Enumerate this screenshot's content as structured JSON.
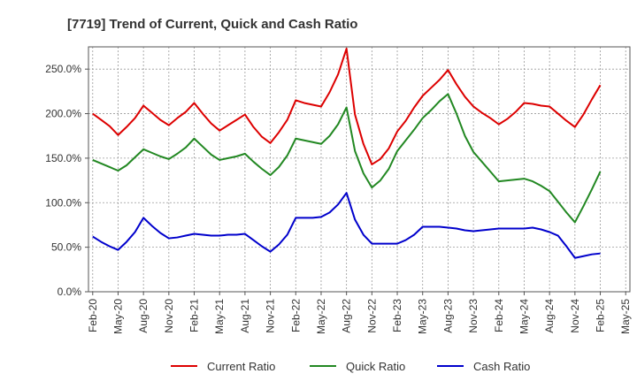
{
  "chart_data": {
    "type": "line",
    "title": "[7719]  Trend of Current, Quick and Cash Ratio",
    "xlabel": "",
    "ylabel": "",
    "ylim": [
      0,
      275
    ],
    "y_ticks": [
      0,
      50,
      100,
      150,
      200,
      250
    ],
    "y_tick_labels": [
      "0.0%",
      "50.0%",
      "100.0%",
      "150.0%",
      "200.0%",
      "250.0%"
    ],
    "x_tick_labels": [
      "Feb-20",
      "May-20",
      "Aug-20",
      "Nov-20",
      "Feb-21",
      "May-21",
      "Aug-21",
      "Nov-21",
      "Feb-22",
      "May-22",
      "Aug-22",
      "Nov-22",
      "Feb-23",
      "May-23",
      "Aug-23",
      "Nov-23",
      "Feb-24",
      "May-24",
      "Aug-24",
      "Nov-24",
      "Feb-25",
      "May-25"
    ],
    "x": [
      "Feb-20",
      "Mar-20",
      "Apr-20",
      "May-20",
      "Jun-20",
      "Jul-20",
      "Aug-20",
      "Sep-20",
      "Oct-20",
      "Nov-20",
      "Dec-20",
      "Jan-21",
      "Feb-21",
      "Mar-21",
      "Apr-21",
      "May-21",
      "Jun-21",
      "Jul-21",
      "Aug-21",
      "Sep-21",
      "Oct-21",
      "Nov-21",
      "Dec-21",
      "Jan-22",
      "Feb-22",
      "Mar-22",
      "Apr-22",
      "May-22",
      "Jun-22",
      "Jul-22",
      "Aug-22",
      "Sep-22",
      "Oct-22",
      "Nov-22",
      "Dec-22",
      "Jan-23",
      "Feb-23",
      "Mar-23",
      "Apr-23",
      "May-23",
      "Jun-23",
      "Jul-23",
      "Aug-23",
      "Sep-23",
      "Oct-23",
      "Nov-23",
      "Dec-23",
      "Jan-24",
      "Feb-24",
      "Mar-24",
      "Apr-24",
      "May-24",
      "Jun-24",
      "Jul-24",
      "Aug-24",
      "Sep-24",
      "Oct-24",
      "Nov-24",
      "Dec-24",
      "Jan-25",
      "Feb-25",
      "Mar-25",
      "Apr-25",
      "May-25"
    ],
    "series": [
      {
        "name": "Current Ratio",
        "color": "#dd0000",
        "values": [
          200,
          193,
          186,
          176,
          185,
          195,
          209,
          201,
          193,
          187,
          195,
          202,
          212,
          200,
          189,
          181,
          187,
          193,
          199,
          185,
          174,
          167,
          179,
          193,
          215,
          212,
          210,
          208,
          224,
          244,
          273,
          199,
          166,
          143,
          149,
          161,
          180,
          192,
          207,
          220,
          229,
          238,
          249,
          233,
          219,
          208,
          201,
          195,
          188,
          194,
          202,
          212,
          211,
          209,
          208,
          200,
          192,
          185,
          199,
          216,
          232,
          null,
          null,
          null
        ]
      },
      {
        "name": "Quick Ratio",
        "color": "#228822",
        "values": [
          148,
          144,
          140,
          136,
          142,
          151,
          160,
          156,
          152,
          149,
          155,
          162,
          172,
          163,
          154,
          148,
          150,
          152,
          155,
          146,
          138,
          131,
          140,
          153,
          172,
          170,
          168,
          166,
          175,
          188,
          207,
          158,
          133,
          117,
          125,
          138,
          158,
          170,
          182,
          195,
          204,
          214,
          222,
          200,
          175,
          157,
          146,
          135,
          124,
          125,
          126,
          127,
          124,
          119,
          113,
          101,
          89,
          78,
          96,
          115,
          135,
          null,
          null,
          null
        ]
      },
      {
        "name": "Cash Ratio",
        "color": "#0000cc",
        "values": [
          62,
          56,
          51,
          47,
          56,
          67,
          83,
          74,
          66,
          60,
          61,
          63,
          65,
          64,
          63,
          63,
          64,
          64,
          65,
          58,
          51,
          45,
          53,
          64,
          83,
          83,
          83,
          84,
          89,
          98,
          111,
          81,
          64,
          54,
          54,
          54,
          54,
          58,
          64,
          73,
          73,
          73,
          72,
          71,
          69,
          68,
          69,
          70,
          71,
          71,
          71,
          71,
          72,
          70,
          67,
          63,
          51,
          38,
          40,
          42,
          43,
          null,
          null,
          null
        ]
      }
    ],
    "legend": {
      "placement": "bottom",
      "entries": [
        "Current Ratio",
        "Quick Ratio",
        "Cash Ratio"
      ]
    }
  }
}
